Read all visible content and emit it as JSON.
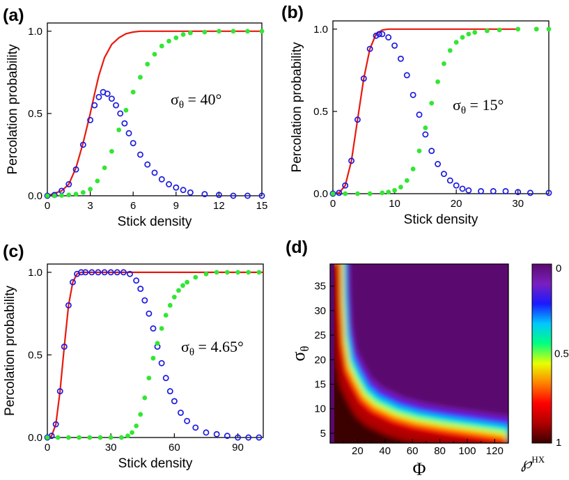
{
  "chart_data": [
    {
      "panel_label": "(a)",
      "type": "scatter",
      "xlabel": "Stick density",
      "ylabel": "Percolation probability",
      "xlim": [
        0,
        15
      ],
      "ylim": [
        0,
        1.05
      ],
      "xticks": [
        0,
        3,
        6,
        9,
        12,
        15
      ],
      "yticks": [
        0.0,
        0.5,
        1.0
      ],
      "annotation": {
        "sym": "σ",
        "sub": "θ",
        "rest": " = 40°"
      },
      "grid": false,
      "series": [
        {
          "kind": "line",
          "color": "#e8180c",
          "x": [
            0,
            1,
            1.5,
            2,
            2.5,
            3,
            3.3,
            3.6,
            4,
            4.5,
            5,
            5.5,
            6,
            6.5,
            7,
            8,
            9,
            10,
            11,
            15
          ],
          "y": [
            0,
            0.03,
            0.07,
            0.17,
            0.32,
            0.5,
            0.62,
            0.73,
            0.84,
            0.92,
            0.96,
            0.985,
            0.995,
            1.0,
            1.0,
            1.0,
            1.0,
            1.0,
            1.0,
            1.0
          ]
        },
        {
          "kind": "open_circle",
          "color": "#1a1ae0",
          "x": [
            0,
            0.5,
            1,
            1.5,
            2,
            2.5,
            3,
            3.3,
            3.6,
            3.9,
            4.2,
            4.5,
            4.8,
            5.1,
            5.4,
            5.7,
            6,
            6.5,
            7,
            7.5,
            8,
            8.5,
            9,
            9.5,
            10,
            11,
            12,
            13,
            14,
            15
          ],
          "y": [
            0,
            0.005,
            0.03,
            0.07,
            0.16,
            0.31,
            0.46,
            0.55,
            0.6,
            0.63,
            0.62,
            0.59,
            0.55,
            0.5,
            0.44,
            0.38,
            0.32,
            0.25,
            0.19,
            0.14,
            0.1,
            0.07,
            0.05,
            0.035,
            0.02,
            0.01,
            0.005,
            0,
            0,
            0
          ]
        },
        {
          "kind": "filled_circle",
          "color": "#33e633",
          "x": [
            0,
            0.5,
            1,
            1.5,
            2,
            2.5,
            3,
            3.5,
            4,
            4.5,
            5,
            5.5,
            6,
            6.5,
            7,
            7.5,
            8,
            8.5,
            9,
            9.5,
            10,
            11,
            12,
            13,
            14,
            15
          ],
          "y": [
            0,
            0,
            0.002,
            0.005,
            0.01,
            0.02,
            0.04,
            0.09,
            0.17,
            0.27,
            0.4,
            0.52,
            0.63,
            0.72,
            0.8,
            0.86,
            0.91,
            0.94,
            0.96,
            0.98,
            0.99,
            0.995,
            1.0,
            1.0,
            1.0,
            1.0
          ]
        }
      ]
    },
    {
      "panel_label": "(b)",
      "type": "scatter",
      "xlabel": "Stick density",
      "ylabel": "Percolation probability",
      "xlim": [
        0,
        35
      ],
      "ylim": [
        0,
        1.05
      ],
      "xticks": [
        0,
        10,
        20,
        30
      ],
      "yticks": [
        0.0,
        0.5,
        1.0
      ],
      "annotation": {
        "sym": "σ",
        "sub": "θ",
        "rest": " = 15°"
      },
      "grid": false,
      "series": [
        {
          "kind": "line",
          "color": "#e8180c",
          "x": [
            0,
            1,
            2,
            3,
            4,
            5,
            6,
            7,
            8,
            9,
            10,
            15,
            20,
            25,
            30
          ],
          "y": [
            0,
            0.005,
            0.05,
            0.2,
            0.45,
            0.7,
            0.88,
            0.97,
            0.995,
            1.0,
            1.0,
            1.0,
            1.0,
            1.0,
            1.0
          ]
        },
        {
          "kind": "open_circle",
          "color": "#1a1ae0",
          "x": [
            0,
            1,
            2,
            3,
            4,
            5,
            6,
            7,
            7.5,
            8,
            9,
            10,
            11,
            12,
            13,
            14,
            15,
            16,
            17,
            18,
            19,
            20,
            21,
            22,
            24,
            26,
            28,
            30,
            32,
            35
          ],
          "y": [
            0,
            0.005,
            0.05,
            0.2,
            0.45,
            0.7,
            0.88,
            0.96,
            0.97,
            0.97,
            0.95,
            0.9,
            0.82,
            0.72,
            0.6,
            0.48,
            0.36,
            0.26,
            0.18,
            0.12,
            0.08,
            0.05,
            0.03,
            0.02,
            0.015,
            0.015,
            0.015,
            0.01,
            0.005,
            0.005
          ]
        },
        {
          "kind": "filled_circle",
          "color": "#33e633",
          "x": [
            0,
            2,
            4,
            6,
            8,
            9,
            10,
            11,
            12,
            13,
            14,
            15,
            16,
            17,
            18,
            19,
            20,
            21,
            22,
            23,
            25,
            27,
            30,
            33,
            35
          ],
          "y": [
            0,
            0,
            0,
            0,
            0.005,
            0.01,
            0.02,
            0.04,
            0.08,
            0.15,
            0.26,
            0.4,
            0.55,
            0.68,
            0.79,
            0.87,
            0.92,
            0.95,
            0.97,
            0.98,
            0.99,
            0.995,
            1.0,
            1.0,
            1.0
          ]
        }
      ]
    },
    {
      "panel_label": "(c)",
      "type": "scatter",
      "xlabel": "Stick density",
      "ylabel": "Percolation probability",
      "xlim": [
        0,
        102
      ],
      "ylim": [
        0,
        1.05
      ],
      "xticks": [
        0,
        30,
        60,
        90
      ],
      "yticks": [
        0.0,
        0.5,
        1.0
      ],
      "annotation": {
        "sym": "σ",
        "sub": "θ",
        "rest": " = 4.65°"
      },
      "grid": false,
      "series": [
        {
          "kind": "line",
          "color": "#e8180c",
          "x": [
            0,
            2,
            4,
            6,
            8,
            10,
            12,
            14,
            16,
            18,
            30,
            60,
            90,
            102
          ],
          "y": [
            0,
            0.01,
            0.08,
            0.28,
            0.55,
            0.8,
            0.94,
            0.99,
            1.0,
            1.0,
            1.0,
            1.0,
            1.0,
            1.0
          ]
        },
        {
          "kind": "open_circle",
          "color": "#1a1ae0",
          "x": [
            0,
            2,
            4,
            6,
            8,
            10,
            12,
            14,
            16,
            18,
            21,
            24,
            27,
            30,
            33,
            36,
            39,
            42,
            44,
            46,
            48,
            50,
            52,
            54,
            56,
            58,
            60,
            63,
            66,
            70,
            75,
            80,
            85,
            90,
            95,
            100
          ],
          "y": [
            0,
            0.01,
            0.08,
            0.28,
            0.55,
            0.8,
            0.94,
            0.99,
            1.0,
            1.0,
            1.0,
            1.0,
            1.0,
            1.0,
            1.0,
            1.0,
            0.99,
            0.95,
            0.9,
            0.83,
            0.75,
            0.66,
            0.55,
            0.45,
            0.36,
            0.28,
            0.22,
            0.15,
            0.1,
            0.06,
            0.03,
            0.02,
            0.01,
            0.0,
            0.0,
            0.0
          ]
        },
        {
          "kind": "filled_circle",
          "color": "#33e633",
          "x": [
            0,
            5,
            10,
            15,
            20,
            25,
            30,
            35,
            38,
            40,
            42,
            44,
            46,
            48,
            50,
            52,
            54,
            56,
            58,
            60,
            62,
            64,
            66,
            70,
            75,
            80,
            85,
            90,
            95,
            100
          ],
          "y": [
            0,
            0,
            0,
            0,
            0,
            0,
            0,
            0,
            0.01,
            0.03,
            0.07,
            0.14,
            0.24,
            0.36,
            0.48,
            0.57,
            0.66,
            0.74,
            0.8,
            0.85,
            0.89,
            0.92,
            0.94,
            0.97,
            0.99,
            1.0,
            1.0,
            1.0,
            1.0,
            1.0
          ]
        }
      ]
    },
    {
      "panel_label": "(d)",
      "type": "heatmap",
      "xlabel": "Φ",
      "ylabel_sym": "σ",
      "ylabel_sub": "θ",
      "xlim": [
        0,
        130
      ],
      "ylim": [
        3,
        39.5
      ],
      "xticks": [
        20,
        40,
        60,
        80,
        100,
        120
      ],
      "yticks": [
        5,
        10,
        15,
        20,
        25,
        30,
        35
      ],
      "colorbar": {
        "min_label": "0",
        "mid_label": "0.5",
        "max_label": "1",
        "title_sym": "℘",
        "title_sup": "HX",
        "colors": [
          "#5a0a6e",
          "#7a1fc0",
          "#1a1aff",
          "#00c8ff",
          "#00ff80",
          "#e8ff00",
          "#ff8000",
          "#ff0000",
          "#b00000",
          "#3a0000"
        ]
      },
      "background_value": 0,
      "grid": false
    }
  ]
}
